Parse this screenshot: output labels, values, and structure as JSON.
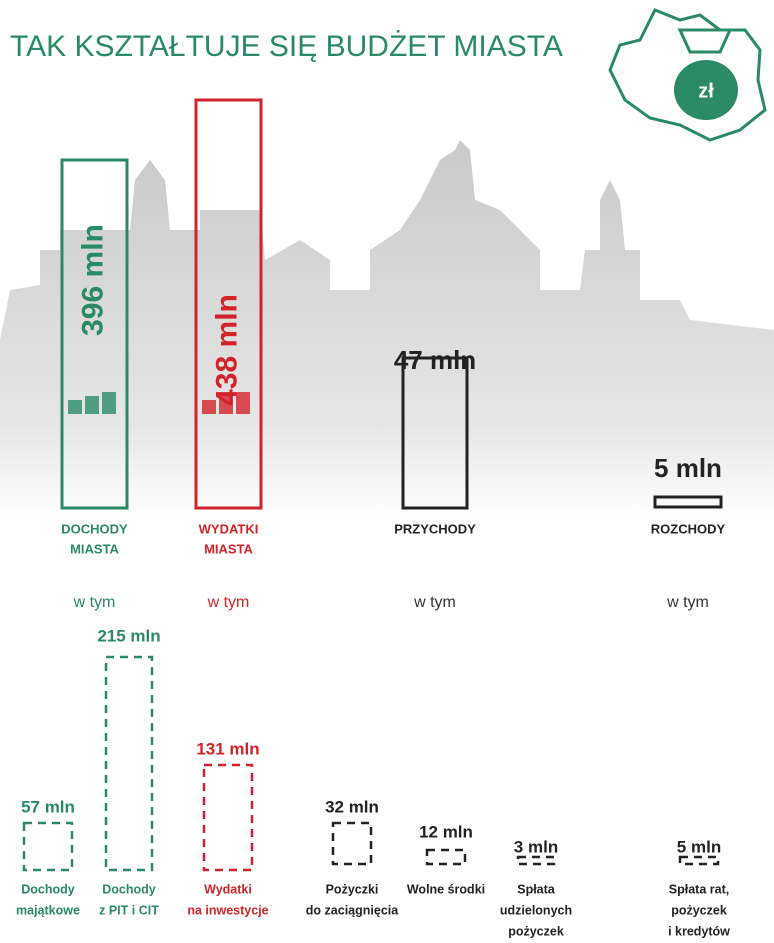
{
  "title": "TAK KSZTAŁTUJE SIĘ BUDŻET MIASTA",
  "logo_text": "zł",
  "main": [
    {
      "amount": "396 mln",
      "label": [
        "DOCHODY",
        "MIASTA"
      ],
      "note": "w tym"
    },
    {
      "amount": "438 mln",
      "label": [
        "WYDATKI",
        "MIASTA"
      ],
      "note": "w tym"
    },
    {
      "amount": "47 mln",
      "label": [
        "PRZYCHODY"
      ],
      "note": "w tym"
    },
    {
      "amount": "5 mln",
      "label": [
        "ROZCHODY"
      ],
      "note": "w tym"
    }
  ],
  "details": [
    {
      "amount": "57 mln",
      "label": [
        "Dochody",
        "majątkowe"
      ]
    },
    {
      "amount": "215 mln",
      "label": [
        "Dochody",
        "z PIT i CIT"
      ]
    },
    {
      "amount": "131 mln",
      "label": [
        "Wydatki",
        "na inwestycje"
      ]
    },
    {
      "amount": "32 mln",
      "label": [
        "Pożyczki",
        "do zaciągnięcia"
      ]
    },
    {
      "amount": "12 mln",
      "label": [
        "Wolne środki"
      ]
    },
    {
      "amount": "3 mln",
      "label": [
        "Spłata",
        "udzielonych",
        "pożyczek"
      ]
    },
    {
      "amount": "5 mln",
      "label": [
        "Spłata rat,",
        "pożyczek",
        "i kredytów"
      ]
    }
  ]
}
